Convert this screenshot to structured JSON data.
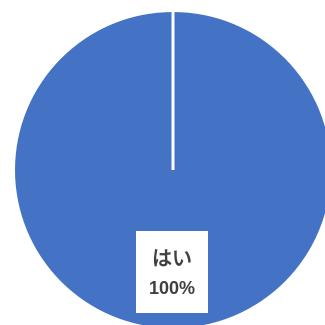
{
  "chart_data": {
    "type": "pie",
    "slices": [
      {
        "label": "はい",
        "value": 100,
        "percent_label": "100%",
        "color": "#4472C4"
      }
    ]
  },
  "colors": {
    "slice": "#4472C4",
    "separator": "#ffffff",
    "label_text": "#404040"
  }
}
